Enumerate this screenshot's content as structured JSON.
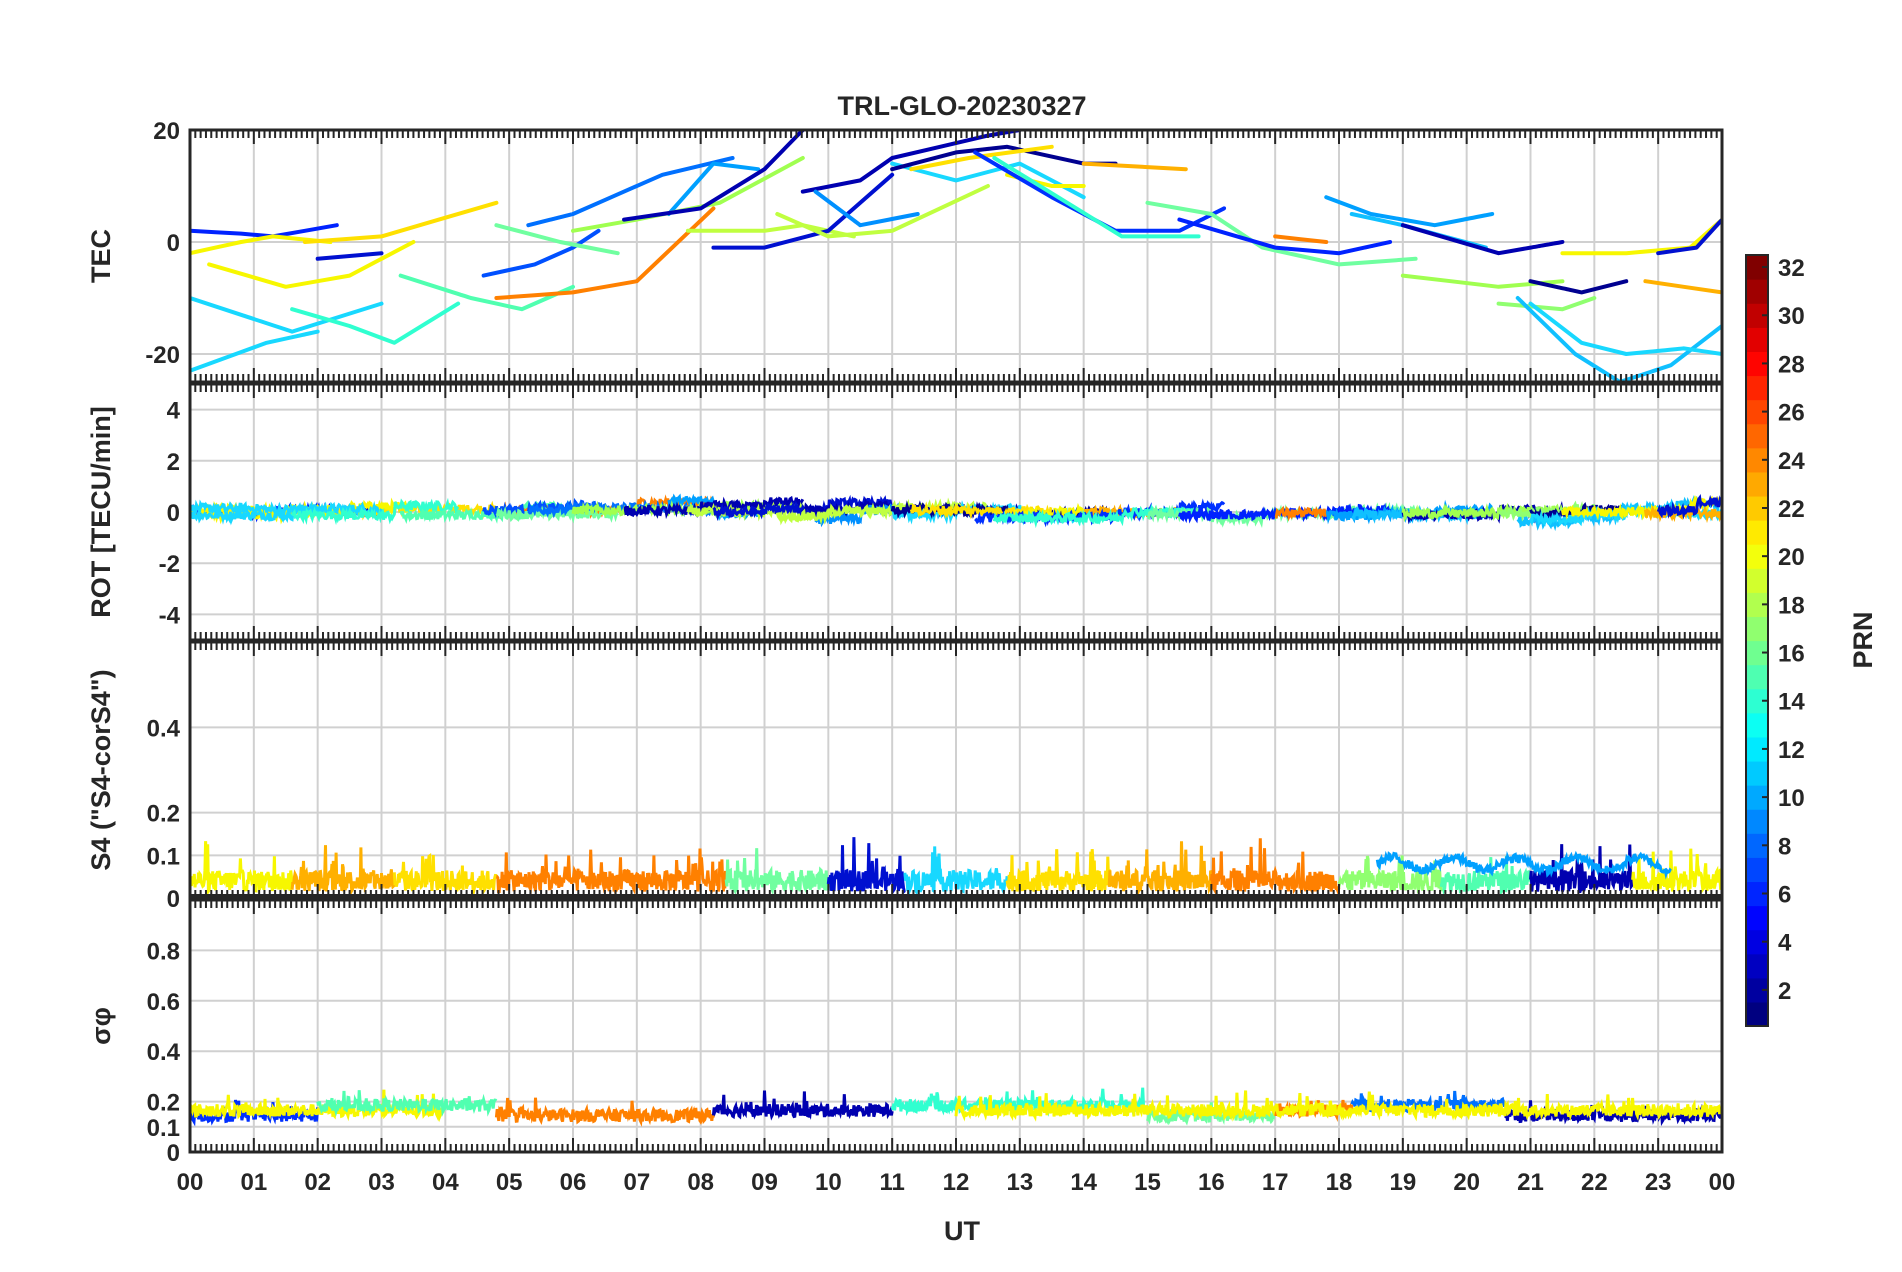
{
  "figure": {
    "title": "TRL-GLO-20230327",
    "xlabel": "UT",
    "colorbar_label": "PRN"
  },
  "x_ticks": [
    "00",
    "01",
    "02",
    "03",
    "04",
    "05",
    "06",
    "07",
    "08",
    "09",
    "10",
    "11",
    "12",
    "13",
    "14",
    "15",
    "16",
    "17",
    "18",
    "19",
    "20",
    "21",
    "22",
    "23",
    "00"
  ],
  "colorbar": {
    "colormap": "jet",
    "range": [
      1,
      32
    ],
    "ticks": [
      "2",
      "4",
      "6",
      "8",
      "10",
      "12",
      "14",
      "16",
      "18",
      "20",
      "22",
      "24",
      "26",
      "28",
      "30",
      "32"
    ]
  },
  "chart_data": [
    {
      "type": "line",
      "panel": "tec",
      "ylabel": "TEC",
      "xlim": [
        0,
        24
      ],
      "ylim": [
        -25,
        20
      ],
      "yticks": [
        "-20",
        "0",
        "20"
      ],
      "grid": true,
      "series": [
        {
          "prn": 4,
          "color": "#0022ff",
          "x": [
            0.0,
            0.8,
            1.3,
            2.3
          ],
          "y": [
            2,
            1.5,
            1,
            3
          ]
        },
        {
          "prn": 3,
          "color": "#0010d0",
          "x": [
            2.0,
            3.0
          ],
          "y": [
            -3,
            -2
          ]
        },
        {
          "prn": 20,
          "color": "#f7f700",
          "x": [
            0.0,
            0.8,
            1.3,
            2.2
          ],
          "y": [
            -2,
            0,
            1,
            0
          ]
        },
        {
          "prn": 21,
          "color": "#ffe000",
          "x": [
            1.8,
            3.0,
            4.8
          ],
          "y": [
            0,
            1,
            7
          ]
        },
        {
          "prn": 20,
          "color": "#f7f700",
          "x": [
            0.3,
            1.5,
            2.5,
            3.5
          ],
          "y": [
            -4,
            -8,
            -6,
            0
          ]
        },
        {
          "prn": 12,
          "color": "#18d8ff",
          "x": [
            0.0,
            1.6,
            3.0
          ],
          "y": [
            -10,
            -16,
            -11
          ]
        },
        {
          "prn": 12,
          "color": "#18d8ff",
          "x": [
            0.0,
            1.2,
            2.0
          ],
          "y": [
            -23,
            -18,
            -16
          ]
        },
        {
          "prn": 13,
          "color": "#30ffd0",
          "x": [
            1.6,
            2.5,
            3.2,
            4.2
          ],
          "y": [
            -12,
            -15,
            -18,
            -11
          ]
        },
        {
          "prn": 14,
          "color": "#50ffb0",
          "x": [
            3.3,
            4.4,
            5.2,
            6.0
          ],
          "y": [
            -6,
            -10,
            -12,
            -8
          ]
        },
        {
          "prn": 24,
          "color": "#ff8000",
          "x": [
            4.8,
            6.0,
            7.0,
            8.2
          ],
          "y": [
            -10,
            -9,
            -7,
            6
          ]
        },
        {
          "prn": 6,
          "color": "#0050ff",
          "x": [
            4.6,
            5.4,
            6.0,
            6.4
          ],
          "y": [
            -6,
            -4,
            -1,
            2
          ]
        },
        {
          "prn": 15,
          "color": "#70ffa0",
          "x": [
            4.8,
            5.8,
            6.7
          ],
          "y": [
            3,
            0,
            -2
          ]
        },
        {
          "prn": 7,
          "color": "#0070ff",
          "x": [
            5.3,
            6.0,
            6.8,
            7.4,
            8.5
          ],
          "y": [
            3,
            5,
            9,
            12,
            15
          ]
        },
        {
          "prn": 9,
          "color": "#00a0ff",
          "x": [
            7.5,
            8.2,
            8.9
          ],
          "y": [
            5,
            14,
            13
          ]
        },
        {
          "prn": 17,
          "color": "#a0ff50",
          "x": [
            6.0,
            7.0,
            8.3,
            9.6
          ],
          "y": [
            2,
            4,
            7,
            15
          ]
        },
        {
          "prn": 2,
          "color": "#0000b0",
          "x": [
            6.8,
            8.0,
            9.0,
            9.6
          ],
          "y": [
            4,
            6,
            13,
            20
          ]
        },
        {
          "prn": 18,
          "color": "#c0ff40",
          "x": [
            7.8,
            9.0,
            9.6,
            10.4
          ],
          "y": [
            2,
            2,
            3,
            1
          ]
        },
        {
          "prn": 3,
          "color": "#0010d0",
          "x": [
            8.2,
            9.0,
            10.0,
            11.0
          ],
          "y": [
            -1,
            -1,
            2,
            12
          ]
        },
        {
          "prn": 2,
          "color": "#0000b0",
          "x": [
            9.6,
            10.5,
            11.0,
            12.5,
            13.0
          ],
          "y": [
            9,
            11,
            15,
            19,
            20
          ]
        },
        {
          "prn": 8,
          "color": "#0090ff",
          "x": [
            9.8,
            10.5,
            11.4
          ],
          "y": [
            9,
            3,
            5
          ]
        },
        {
          "prn": 18,
          "color": "#c0ff40",
          "x": [
            9.2,
            10.0,
            11.0,
            12.5
          ],
          "y": [
            5,
            1,
            2,
            10
          ]
        },
        {
          "prn": 12,
          "color": "#18d8ff",
          "x": [
            11.0,
            12.0,
            13.0,
            14.0
          ],
          "y": [
            14,
            11,
            14,
            8
          ]
        },
        {
          "prn": 1,
          "color": "#000090",
          "x": [
            11.0,
            12.0,
            12.8,
            14.0,
            14.5
          ],
          "y": [
            13,
            16,
            17,
            14,
            14
          ]
        },
        {
          "prn": 22,
          "color": "#ffb000",
          "x": [
            14.0,
            15.6
          ],
          "y": [
            14,
            13
          ]
        },
        {
          "prn": 21,
          "color": "#ffe000",
          "x": [
            11.3,
            12.2,
            13.5
          ],
          "y": [
            13,
            15,
            17
          ]
        },
        {
          "prn": 20,
          "color": "#f7f700",
          "x": [
            12.8,
            13.5,
            14.0
          ],
          "y": [
            12,
            10,
            10
          ]
        },
        {
          "prn": 5,
          "color": "#0030ff",
          "x": [
            12.3,
            13.5,
            14.5,
            15.5,
            16.2
          ],
          "y": [
            16,
            8,
            2,
            2,
            6
          ]
        },
        {
          "prn": 13,
          "color": "#30ffd0",
          "x": [
            12.6,
            13.6,
            14.6,
            15.8
          ],
          "y": [
            15,
            8,
            1,
            1
          ]
        },
        {
          "prn": 15,
          "color": "#70ffa0",
          "x": [
            15.0,
            16.0,
            16.8,
            18.0,
            19.2
          ],
          "y": [
            7,
            5,
            -1,
            -4,
            -3
          ]
        },
        {
          "prn": 4,
          "color": "#0022ff",
          "x": [
            15.5,
            17.0,
            18.0,
            18.8
          ],
          "y": [
            4,
            -1,
            -2,
            0
          ]
        },
        {
          "prn": 24,
          "color": "#ff8000",
          "x": [
            17.0,
            17.8
          ],
          "y": [
            1,
            0
          ]
        },
        {
          "prn": 9,
          "color": "#00a0ff",
          "x": [
            17.8,
            18.5,
            19.5,
            20.4
          ],
          "y": [
            8,
            5,
            3,
            5
          ]
        },
        {
          "prn": 11,
          "color": "#10c0ff",
          "x": [
            18.2,
            19.0,
            20.3
          ],
          "y": [
            5,
            3,
            -1
          ]
        },
        {
          "prn": 2,
          "color": "#0000b0",
          "x": [
            19.0,
            20.5,
            21.5
          ],
          "y": [
            3,
            -2,
            0
          ]
        },
        {
          "prn": 17,
          "color": "#a0ff50",
          "x": [
            19.0,
            20.5,
            21.5
          ],
          "y": [
            -6,
            -8,
            -7
          ]
        },
        {
          "prn": 16,
          "color": "#90ff70",
          "x": [
            20.5,
            21.5,
            22.0
          ],
          "y": [
            -11,
            -12,
            -10
          ]
        },
        {
          "prn": 1,
          "color": "#000090",
          "x": [
            21.0,
            21.8,
            22.5
          ],
          "y": [
            -7,
            -9,
            -7
          ]
        },
        {
          "prn": 11,
          "color": "#10c0ff",
          "x": [
            20.8,
            21.7,
            22.4,
            23.2,
            24.0
          ],
          "y": [
            -10,
            -20,
            -25,
            -22,
            -15
          ]
        },
        {
          "prn": 12,
          "color": "#18d8ff",
          "x": [
            21.0,
            21.8,
            22.5,
            23.4,
            24.0
          ],
          "y": [
            -11,
            -18,
            -20,
            -19,
            -20
          ]
        },
        {
          "prn": 20,
          "color": "#f7f700",
          "x": [
            21.5,
            22.5,
            23.5,
            24.0
          ],
          "y": [
            -2,
            -2,
            -1,
            4
          ]
        },
        {
          "prn": 22,
          "color": "#ffb000",
          "x": [
            22.8,
            24.0
          ],
          "y": [
            -7,
            -9
          ]
        },
        {
          "prn": 3,
          "color": "#0010d0",
          "x": [
            23.0,
            23.6,
            24.0
          ],
          "y": [
            -2,
            -1,
            4
          ]
        }
      ]
    },
    {
      "type": "line",
      "panel": "rot",
      "ylabel": "ROT [TECU/min]",
      "xlim": [
        0,
        24
      ],
      "ylim": [
        -5,
        5
      ],
      "yticks": [
        "-4",
        "-2",
        "0",
        "2",
        "4"
      ],
      "grid": true,
      "description_level": "all PRNs fluctuate within about ±0.6 TECU/min around 0"
    },
    {
      "type": "line",
      "panel": "s4",
      "ylabel": "S4 (\"S4-corS4\")",
      "xlim": [
        0,
        24
      ],
      "ylim": [
        0,
        0.6
      ],
      "yticks": [
        "0",
        "0.1",
        "0.2",
        "0.4"
      ],
      "grid": true
    },
    {
      "type": "line",
      "panel": "sigma_phi",
      "ylabel": "σφ",
      "xlim": [
        0,
        24
      ],
      "ylim": [
        0,
        1
      ],
      "yticks": [
        "0",
        "0.1",
        "0.2",
        "0.4",
        "0.6",
        "0.8"
      ],
      "grid": true
    }
  ],
  "s4_bands": [
    {
      "x0": 0.0,
      "x1": 1.6,
      "color": "#f7f700"
    },
    {
      "x0": 1.6,
      "x1": 3.2,
      "color": "#ffb000"
    },
    {
      "x0": 3.2,
      "x1": 4.8,
      "color": "#ffe000"
    },
    {
      "x0": 4.8,
      "x1": 6.6,
      "color": "#ff8000"
    },
    {
      "x0": 6.6,
      "x1": 8.4,
      "color": "#ff8000"
    },
    {
      "x0": 8.4,
      "x1": 10.0,
      "color": "#70ffa0"
    },
    {
      "x0": 10.0,
      "x1": 11.2,
      "color": "#0010d0"
    },
    {
      "x0": 11.2,
      "x1": 12.8,
      "color": "#18d8ff"
    },
    {
      "x0": 12.8,
      "x1": 14.4,
      "color": "#ffe000"
    },
    {
      "x0": 14.4,
      "x1": 16.0,
      "color": "#ffb000"
    },
    {
      "x0": 16.0,
      "x1": 18.0,
      "color": "#ff8000"
    },
    {
      "x0": 18.0,
      "x1": 19.6,
      "color": "#90ff70"
    },
    {
      "x0": 19.6,
      "x1": 21.0,
      "color": "#50ffb0"
    },
    {
      "x0": 21.0,
      "x1": 22.6,
      "color": "#0000b0"
    },
    {
      "x0": 22.6,
      "x1": 24.0,
      "color": "#f7f700"
    }
  ],
  "sigma_bands": [
    {
      "x0": 0.0,
      "x1": 2.0,
      "color": "#0030ff"
    },
    {
      "x0": 0.0,
      "x1": 4.0,
      "color": "#f7f700"
    },
    {
      "x0": 2.0,
      "x1": 4.8,
      "color": "#50ffb0"
    },
    {
      "x0": 4.8,
      "x1": 8.2,
      "color": "#ff8000"
    },
    {
      "x0": 8.2,
      "x1": 11.0,
      "color": "#0000b0"
    },
    {
      "x0": 11.0,
      "x1": 15.0,
      "color": "#30ffd0"
    },
    {
      "x0": 15.0,
      "x1": 17.0,
      "color": "#70ffa0"
    },
    {
      "x0": 17.0,
      "x1": 18.2,
      "color": "#ff8000"
    },
    {
      "x0": 18.2,
      "x1": 20.6,
      "color": "#0070ff"
    },
    {
      "x0": 20.6,
      "x1": 24.0,
      "color": "#0000b0"
    },
    {
      "x0": 12.0,
      "x1": 24.0,
      "color": "#f7f700"
    }
  ]
}
